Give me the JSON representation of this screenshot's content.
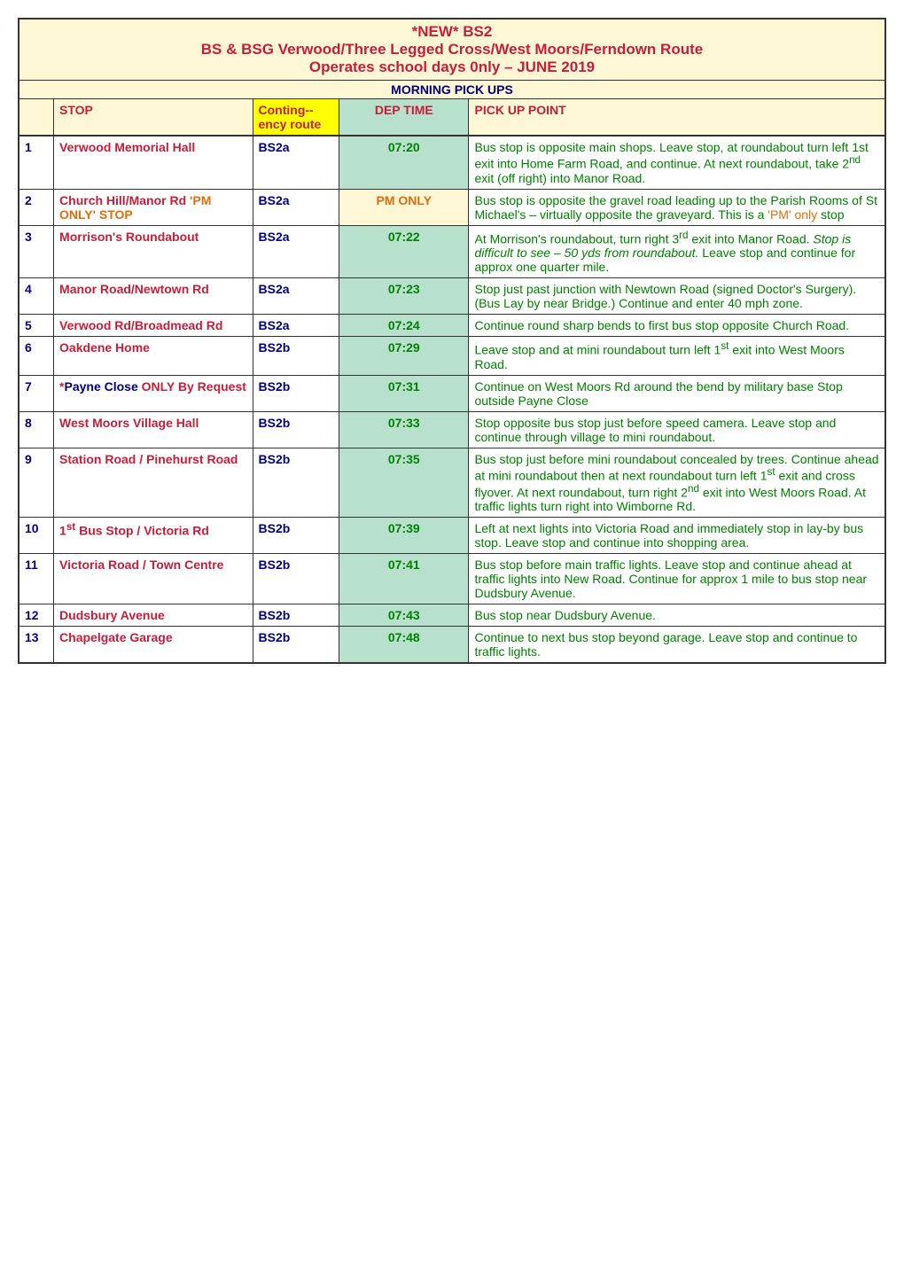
{
  "colors": {
    "yellow_bg": "#fef7d6",
    "red_text": "#c41e3a",
    "navy_text": "#000080",
    "green_bg": "#b7e1cd",
    "green_text": "#008000",
    "orange_text": "#e36c0a",
    "border": "#333333"
  },
  "title": {
    "line1": "*NEW* BS2",
    "line2": "BS & BSG Verwood/Three Legged Cross/West Moors/Ferndown Route",
    "line3": "Operates school days 0nly – JUNE 2019"
  },
  "morning_header": "MORNING PICK UPS",
  "headers": {
    "stop": "STOP",
    "conting": "Conting--ency route",
    "dep": "DEP TIME",
    "pick": "PICK UP POINT"
  },
  "rows": [
    {
      "num": "1",
      "num_color": "#000080",
      "stop_parts": [
        {
          "text": "Verwood Memorial Hall",
          "color": "#c41e3a"
        }
      ],
      "cont": "BS2a",
      "cont_color": "#000080",
      "dep": "07:20",
      "dep_color": "#008000",
      "dep_bg": "#b7e1cd",
      "pick_parts": [
        {
          "text": "Bus stop is opposite main shops. Leave stop, at roundabout turn left 1st exit into Home Farm Road, and continue. At next roundabout, take 2",
          "color": "#008000"
        },
        {
          "text": "nd",
          "color": "#008000",
          "sup": true
        },
        {
          "text": " exit (off right) into Manor Road.",
          "color": "#008000"
        }
      ]
    },
    {
      "num": "2",
      "num_color": "#000080",
      "stop_parts": [
        {
          "text": "Church Hill/Manor Rd ",
          "color": "#c41e3a"
        },
        {
          "text": "'PM ONLY' STOP",
          "color": "#e36c0a"
        }
      ],
      "cont": "BS2a",
      "cont_color": "#000080",
      "dep": "PM ONLY",
      "dep_color": "#e36c0a",
      "dep_bg": "#fef7d6",
      "pick_parts": [
        {
          "text": "Bus stop is opposite the gravel road leading up to the Parish Rooms of St Michael's – virtually opposite the graveyard. This is a ",
          "color": "#008000"
        },
        {
          "text": "'PM' only",
          "color": "#e36c0a"
        },
        {
          "text": " stop",
          "color": "#008000"
        }
      ]
    },
    {
      "num": "3",
      "num_color": "#000080",
      "stop_parts": [
        {
          "text": "Morrison's Roundabout",
          "color": "#c41e3a"
        }
      ],
      "cont": "BS2a",
      "cont_color": "#000080",
      "dep": "07:22",
      "dep_color": "#008000",
      "dep_bg": "#b7e1cd",
      "pick_parts": [
        {
          "text": "At Morrison's roundabout, turn right 3",
          "color": "#008000"
        },
        {
          "text": "rd",
          "color": "#008000",
          "sup": true
        },
        {
          "text": " exit into Manor Road. ",
          "color": "#008000"
        },
        {
          "text": "Stop is difficult to see – 50 yds from roundabout.",
          "color": "#008000",
          "italic": true
        },
        {
          "text": "  Leave stop and continue for approx one quarter mile.",
          "color": "#008000"
        }
      ]
    },
    {
      "num": "4",
      "num_color": "#000080",
      "stop_parts": [
        {
          "text": "Manor Road/Newtown Rd",
          "color": "#c41e3a"
        }
      ],
      "cont": "BS2a",
      "cont_color": "#000080",
      "dep": "07:23",
      "dep_color": "#008000",
      "dep_bg": "#b7e1cd",
      "pick_parts": [
        {
          "text": "Stop just past junction with Newtown Road (signed Doctor's Surgery). (Bus Lay by near Bridge.) Continue and enter 40 mph zone.",
          "color": "#008000"
        }
      ]
    },
    {
      "num": "5",
      "num_color": "#000080",
      "stop_parts": [
        {
          "text": "Verwood Rd/Broadmead Rd",
          "color": "#c41e3a"
        }
      ],
      "cont": "BS2a",
      "cont_color": "#000080",
      "dep": "07:24",
      "dep_color": "#008000",
      "dep_bg": "#b7e1cd",
      "pick_parts": [
        {
          "text": "Continue round sharp bends to first bus stop opposite Church Road.",
          "color": "#008000"
        }
      ]
    },
    {
      "num": "6",
      "num_color": "#000080",
      "stop_parts": [
        {
          "text": "Oakdene Home",
          "color": "#c41e3a"
        }
      ],
      "cont": "BS2b",
      "cont_color": "#000080",
      "dep": "07:29",
      "dep_color": "#008000",
      "dep_bg": "#b7e1cd",
      "pick_parts": [
        {
          "text": "Leave stop and at mini roundabout turn left 1",
          "color": "#008000"
        },
        {
          "text": "st",
          "color": "#008000",
          "sup": true
        },
        {
          "text": " exit into West Moors Road.",
          "color": "#008000"
        }
      ]
    },
    {
      "num": "7",
      "num_color": "#000080",
      "stop_parts": [
        {
          "text": "*",
          "color": "#c41e3a"
        },
        {
          "text": "Payne Close ",
          "color": "#000080"
        },
        {
          "text": "ONLY By Request",
          "color": "#c41e3a"
        }
      ],
      "cont": "BS2b",
      "cont_color": "#000080",
      "dep": "07:31",
      "dep_color": "#008000",
      "dep_bg": "#b7e1cd",
      "pick_parts": [
        {
          "text": "Continue on West Moors Rd around the bend by military base Stop outside Payne Close",
          "color": "#008000"
        }
      ]
    },
    {
      "num": "8",
      "num_color": "#000080",
      "stop_parts": [
        {
          "text": "West Moors Village Hall",
          "color": "#c41e3a"
        }
      ],
      "cont": "BS2b",
      "cont_color": "#000080",
      "dep": "07:33",
      "dep_color": "#008000",
      "dep_bg": "#b7e1cd",
      "pick_parts": [
        {
          "text": "Stop opposite bus stop just before speed camera. Leave stop and continue through village to mini roundabout.",
          "color": "#008000"
        }
      ]
    },
    {
      "num": "9",
      "num_color": "#000080",
      "stop_parts": [
        {
          "text": "Station Road / Pinehurst Road",
          "color": "#c41e3a"
        }
      ],
      "cont": "BS2b",
      "cont_color": "#000080",
      "dep": "07:35",
      "dep_color": "#008000",
      "dep_bg": "#b7e1cd",
      "pick_parts": [
        {
          "text": "Bus stop just before mini roundabout concealed by trees. Continue ahead at mini roundabout then at next roundabout turn left 1",
          "color": "#008000"
        },
        {
          "text": "st",
          "color": "#008000",
          "sup": true
        },
        {
          "text": " exit and cross flyover. At next roundabout, turn right 2",
          "color": "#008000"
        },
        {
          "text": "nd",
          "color": "#008000",
          "sup": true
        },
        {
          "text": " exit into West Moors Road. At traffic lights turn right into Wimborne Rd.",
          "color": "#008000"
        }
      ]
    },
    {
      "num": "10",
      "num_color": "#000080",
      "stop_parts": [
        {
          "text": "1",
          "color": "#c41e3a"
        },
        {
          "text": "st",
          "color": "#c41e3a",
          "sup": true
        },
        {
          "text": " Bus Stop / Victoria Rd",
          "color": "#c41e3a"
        }
      ],
      "cont": "BS2b",
      "cont_color": "#000080",
      "dep": "07:39",
      "dep_color": "#008000",
      "dep_bg": "#b7e1cd",
      "pick_parts": [
        {
          "text": "Left at next lights into Victoria Road and immediately stop in lay-by bus stop. Leave stop and continue into shopping area.",
          "color": "#008000"
        }
      ]
    },
    {
      "num": "11",
      "num_color": "#000080",
      "stop_parts": [
        {
          "text": "Victoria Road / Town Centre",
          "color": "#c41e3a"
        }
      ],
      "cont": "BS2b",
      "cont_color": "#000080",
      "dep": "07:41",
      "dep_color": "#008000",
      "dep_bg": "#b7e1cd",
      "pick_parts": [
        {
          "text": "Bus stop before main traffic lights. Leave stop and continue ahead at traffic lights into New Road. Continue for approx 1 mile to bus stop near Dudsbury Avenue.",
          "color": "#008000"
        }
      ]
    },
    {
      "num": "12",
      "num_color": "#000080",
      "stop_parts": [
        {
          "text": "Dudsbury Avenue",
          "color": "#c41e3a"
        }
      ],
      "cont": "BS2b",
      "cont_color": "#000080",
      "dep": "07:43",
      "dep_color": "#008000",
      "dep_bg": "#b7e1cd",
      "pick_parts": [
        {
          "text": "Bus stop near Dudsbury Avenue.",
          "color": "#008000"
        }
      ]
    },
    {
      "num": "13",
      "num_color": "#000080",
      "stop_parts": [
        {
          "text": "Chapelgate Garage",
          "color": "#c41e3a"
        }
      ],
      "cont": "BS2b",
      "cont_color": "#000080",
      "dep": "07:48",
      "dep_color": "#008000",
      "dep_bg": "#b7e1cd",
      "pick_parts": [
        {
          "text": "Continue to next bus stop beyond garage. Leave stop and continue to traffic lights.",
          "color": "#008000"
        }
      ]
    }
  ]
}
